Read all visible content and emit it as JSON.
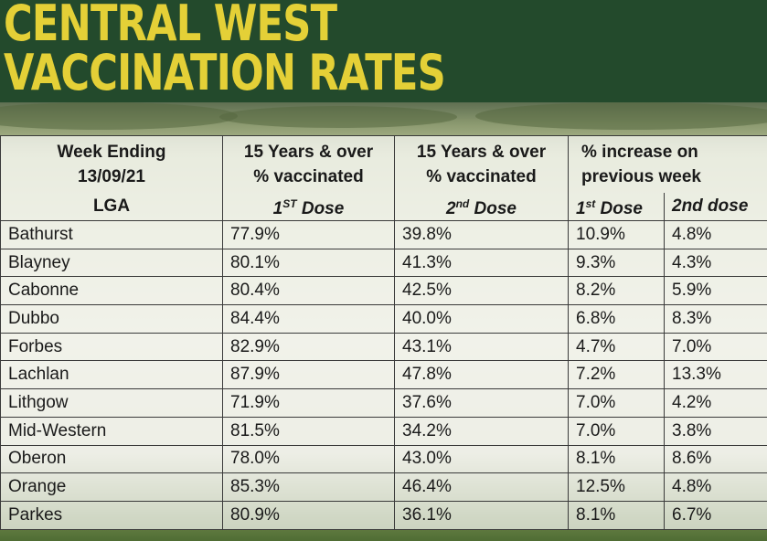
{
  "title": {
    "line1": "CENTRAL WEST",
    "line2": "VACCINATION RATES"
  },
  "colors": {
    "header_bg": "#234a2c",
    "title_text": "#e4d037"
  },
  "table": {
    "header": {
      "week_ending_label": "Week Ending",
      "week_ending_date": "13/09/21",
      "col_first_line1": "15 Years & over",
      "col_first_line2": "% vaccinated",
      "col_second_line1": "15 Years & over",
      "col_second_line2": "% vaccinated",
      "col_increase_line1": "% increase on",
      "col_increase_line2": "previous week",
      "lga": "LGA",
      "first_dose_prefix": "1",
      "first_dose_sup": "ST",
      "first_dose_suffix": "Dose",
      "second_dose_prefix": "2",
      "second_dose_sup": "nd",
      "second_dose_suffix": "Dose",
      "inc_first_prefix": "1",
      "inc_first_sup": "st",
      "inc_first_suffix": "Dose",
      "inc_second": "2nd dose"
    },
    "rows": [
      {
        "lga": "Bathurst",
        "dose1": "77.9%",
        "dose2": "39.8%",
        "inc1": "10.9%",
        "inc2": "4.8%"
      },
      {
        "lga": "Blayney",
        "dose1": "80.1%",
        "dose2": "41.3%",
        "inc1": "9.3%",
        "inc2": "4.3%"
      },
      {
        "lga": "Cabonne",
        "dose1": "80.4%",
        "dose2": "42.5%",
        "inc1": "8.2%",
        "inc2": "5.9%"
      },
      {
        "lga": "Dubbo",
        "dose1": "84.4%",
        "dose2": "40.0%",
        "inc1": "6.8%",
        "inc2": "8.3%"
      },
      {
        "lga": "Forbes",
        "dose1": "82.9%",
        "dose2": "43.1%",
        "inc1": "4.7%",
        "inc2": "7.0%"
      },
      {
        "lga": "Lachlan",
        "dose1": "87.9%",
        "dose2": "47.8%",
        "inc1": "7.2%",
        "inc2": "13.3%"
      },
      {
        "lga": "Lithgow",
        "dose1": "71.9%",
        "dose2": "37.6%",
        "inc1": "7.0%",
        "inc2": "4.2%"
      },
      {
        "lga": "Mid-Western",
        "dose1": "81.5%",
        "dose2": "34.2%",
        "inc1": "7.0%",
        "inc2": "3.8%"
      },
      {
        "lga": "Oberon",
        "dose1": "78.0%",
        "dose2": "43.0%",
        "inc1": "8.1%",
        "inc2": "8.6%"
      },
      {
        "lga": "Orange",
        "dose1": "85.3%",
        "dose2": "46.4%",
        "inc1": "12.5%",
        "inc2": "4.8%"
      },
      {
        "lga": "Parkes",
        "dose1": "80.9%",
        "dose2": "36.1%",
        "inc1": "8.1%",
        "inc2": "6.7%"
      }
    ]
  }
}
